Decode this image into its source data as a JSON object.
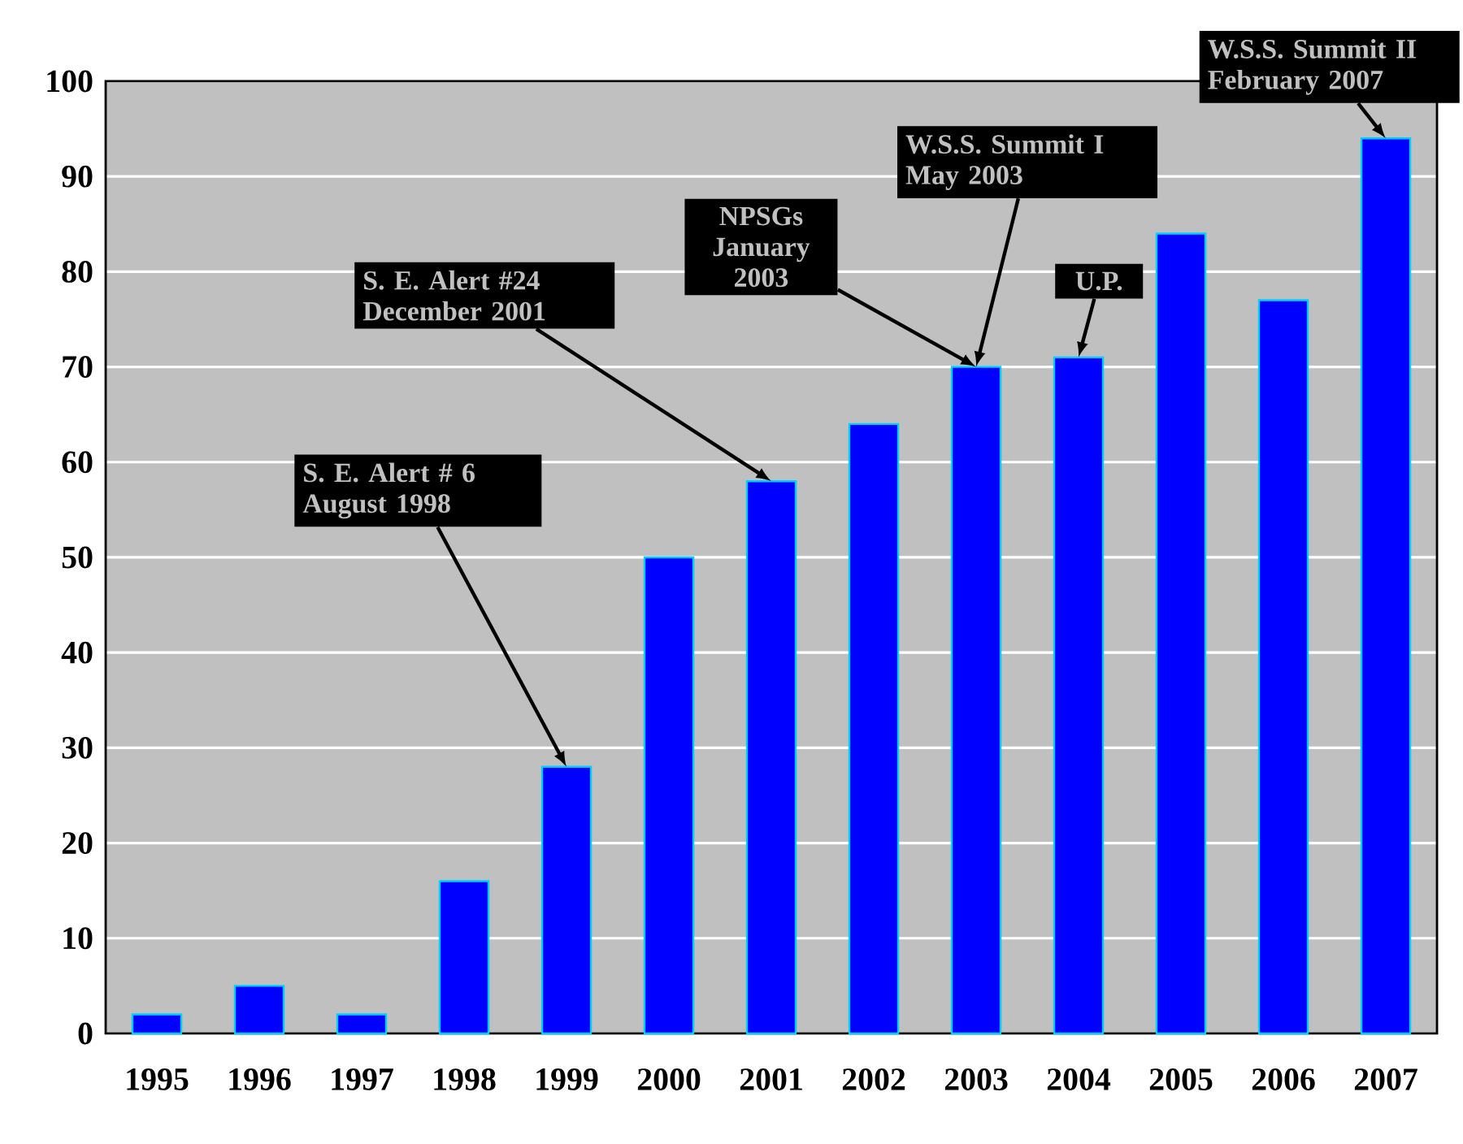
{
  "chart_data": {
    "type": "bar",
    "categories": [
      "1995",
      "1996",
      "1997",
      "1998",
      "1999",
      "2000",
      "2001",
      "2002",
      "2003",
      "2004",
      "2005",
      "2006",
      "2007"
    ],
    "values": [
      2,
      5,
      2,
      16,
      28,
      50,
      58,
      64,
      70,
      71,
      84,
      77,
      94
    ],
    "color": "#0000ff",
    "ylim": [
      0,
      100
    ],
    "yticks": [
      0,
      10,
      20,
      30,
      40,
      50,
      60,
      70,
      80,
      90,
      100
    ],
    "grid": "y",
    "annotations": [
      {
        "text": "S. E. Alert # 6 August 1998",
        "x": "1999",
        "y": 28
      },
      {
        "text": "S. E. Alert #24 December 2001",
        "x": "2001",
        "y": 58
      },
      {
        "text": "NPSGs January 2003",
        "x": "2003",
        "y": 70
      },
      {
        "text": "W.S.S. Summit I May 2003",
        "x": "2003",
        "y": 70
      },
      {
        "text": "U.P.",
        "x": "2004",
        "y": 71
      },
      {
        "text": "W.S.S. Summit II February 2007",
        "x": "2007",
        "y": 94
      }
    ]
  }
}
